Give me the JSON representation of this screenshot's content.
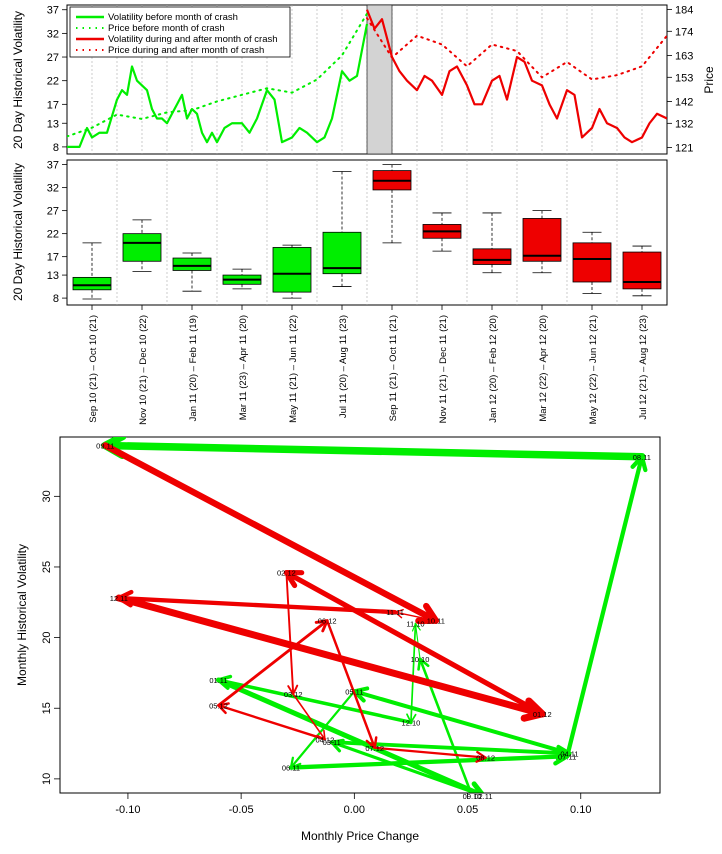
{
  "chart_data": [
    {
      "type": "line",
      "title": "",
      "ylabel": "20 Day Historical Volatility",
      "y2label": "Price",
      "ylim": [
        6.5,
        38
      ],
      "y2lim": [
        118,
        186
      ],
      "yticks": [
        "8",
        "13",
        "17",
        "22",
        "27",
        "32",
        "37"
      ],
      "y2ticks": [
        "121",
        "132",
        "142",
        "153",
        "163",
        "174",
        "184"
      ],
      "y2tick_values": [
        121,
        132,
        142,
        153,
        163,
        174,
        184
      ],
      "ytick_values": [
        8,
        13,
        17,
        22,
        27,
        32,
        37
      ],
      "month_count": 24,
      "crash_window": [
        12,
        13
      ],
      "legend": [
        "Volatility before month of crash",
        "Price before month of crash",
        "Volatility during and after month of crash",
        "Price during and after month of crash"
      ],
      "colors": {
        "before": "#00ee00",
        "after": "#ee0000",
        "crash_band": "#d3d3d3"
      },
      "series": [
        {
          "name": "Volatility before month of crash",
          "x": [
            0,
            0.5,
            0.8,
            1,
            1.3,
            1.6,
            2,
            2.2,
            2.4,
            2.6,
            2.8,
            3,
            3.2,
            3.4,
            3.6,
            3.8,
            4,
            4.2,
            4.4,
            4.6,
            4.8,
            5,
            5.2,
            5.4,
            5.6,
            5.8,
            6,
            6.3,
            6.6,
            7,
            7.3,
            7.6,
            8,
            8.3,
            8.6,
            9,
            9.3,
            9.6,
            10,
            10.3,
            10.6,
            11,
            11.3,
            11.6,
            12
          ],
          "values": [
            8,
            8,
            12,
            10,
            11,
            11,
            18,
            20,
            19,
            25,
            22,
            21,
            20,
            16,
            14,
            14,
            13,
            15,
            17,
            19,
            14,
            16,
            15,
            11,
            9,
            11,
            9,
            12,
            13,
            13,
            11,
            14,
            20,
            18,
            9,
            10,
            12,
            11,
            9,
            10,
            14,
            24,
            22,
            23,
            34
          ]
        },
        {
          "name": "Price before month of crash",
          "x": [
            0,
            1,
            2,
            3,
            4,
            5,
            6,
            7,
            8,
            9,
            10,
            11,
            12
          ],
          "values": [
            126,
            130,
            136,
            134,
            137,
            138,
            142,
            145,
            148,
            146,
            152,
            163,
            182
          ]
        },
        {
          "name": "Volatility during and after month of crash",
          "x": [
            12,
            12.3,
            12.6,
            13,
            13.3,
            13.6,
            14,
            14.3,
            14.6,
            15,
            15.3,
            15.6,
            16,
            16.3,
            16.6,
            17,
            17.3,
            17.6,
            18,
            18.3,
            18.6,
            19,
            19.3,
            19.6,
            20,
            20.3,
            20.6,
            21,
            21.3,
            21.6,
            22,
            22.3,
            22.6,
            23,
            23.3,
            23.6,
            24
          ],
          "values": [
            37,
            33,
            35,
            27,
            24,
            22,
            20,
            23,
            22,
            19,
            24,
            25,
            21,
            17,
            17,
            22,
            23,
            18,
            27,
            26,
            22,
            21,
            17,
            14,
            20,
            19,
            10,
            12,
            16,
            13,
            12,
            10,
            9,
            10,
            13,
            15,
            14
          ]
        },
        {
          "name": "Price during and after month of crash",
          "x": [
            12,
            13,
            14,
            15,
            16,
            17,
            18,
            19,
            20,
            21,
            22,
            23,
            24
          ],
          "values": [
            180,
            162,
            172,
            168,
            158,
            168,
            165,
            153,
            160,
            152,
            154,
            158,
            172
          ]
        }
      ],
      "x_categories": [
        "Sep 10 (21) – Oct 10 (21)",
        "Nov 10 (21) – Dec 10 (22)",
        "Jan 11 (20) – Feb 11 (19)",
        "Mar 11 (23) – Apr 11 (20)",
        "May 11 (21) – Jun 11 (22)",
        "Jul 11 (20) – Aug 11 (23)",
        "Sep 11 (21) – Oct 11 (21)",
        "Nov 11 (21) – Dec 11 (21)",
        "Jan 12 (20) – Feb 12 (20)",
        "Mar 12 (22) – Apr 12 (20)",
        "May 12 (22) – Jun 12 (21)",
        "Jul 12 (21) – Aug 12 (23)"
      ]
    },
    {
      "type": "box",
      "ylabel": "20 Day Historical Volatility",
      "ylim": [
        6.5,
        38
      ],
      "yticks": [
        "8",
        "13",
        "17",
        "22",
        "27",
        "32",
        "37"
      ],
      "ytick_values": [
        8,
        13,
        17,
        22,
        27,
        32,
        37
      ],
      "categories": [
        "Sep 10 (21) – Oct 10 (21)",
        "Nov 10 (21) – Dec 10 (22)",
        "Jan 11 (20) – Feb 11 (19)",
        "Mar 11 (23) – Apr 11 (20)",
        "May 11 (21) – Jun 11 (22)",
        "Jul 11 (20) – Aug 11 (23)",
        "Sep 11 (21) – Oct 11 (21)",
        "Nov 11 (21) – Dec 11 (21)",
        "Jan 12 (20) – Feb 12 (20)",
        "Mar 12 (22) – Apr 12 (20)",
        "May 12 (22) – Jun 12 (21)",
        "Jul 12 (21) – Aug 12 (23)"
      ],
      "boxes": [
        {
          "min": 7.8,
          "q1": 9.8,
          "median": 10.8,
          "q3": 12.5,
          "max": 20,
          "color": "#00ee00"
        },
        {
          "min": 13.8,
          "q1": 16,
          "median": 20,
          "q3": 22,
          "max": 25,
          "color": "#00ee00"
        },
        {
          "min": 9.5,
          "q1": 14,
          "median": 15,
          "q3": 16.7,
          "max": 17.8,
          "color": "#00ee00"
        },
        {
          "min": 10,
          "q1": 11,
          "median": 12,
          "q3": 13,
          "max": 14.3,
          "color": "#00ee00"
        },
        {
          "min": 8,
          "q1": 9.3,
          "median": 13.3,
          "q3": 19,
          "max": 19.5,
          "color": "#00ee00"
        },
        {
          "min": 10.5,
          "q1": 13.3,
          "median": 14.5,
          "q3": 22.3,
          "max": 35.5,
          "color": "#00ee00"
        },
        {
          "min": 20,
          "q1": 31.5,
          "median": 33.5,
          "q3": 35.7,
          "max": 37,
          "color": "#ee0000"
        },
        {
          "min": 18.2,
          "q1": 21,
          "median": 22.5,
          "q3": 24,
          "max": 26.5,
          "color": "#ee0000"
        },
        {
          "min": 13.5,
          "q1": 15.3,
          "median": 16.3,
          "q3": 18.7,
          "max": 26.5,
          "color": "#ee0000"
        },
        {
          "min": 13.5,
          "q1": 16,
          "median": 17.2,
          "q3": 25.3,
          "max": 27,
          "color": "#ee0000"
        },
        {
          "min": 9,
          "q1": 11.5,
          "median": 16.5,
          "q3": 20,
          "max": 22.3,
          "color": "#ee0000"
        },
        {
          "min": 8.5,
          "q1": 10,
          "median": 11.5,
          "q3": 18,
          "max": 19.3,
          "color": "#ee0000"
        }
      ]
    },
    {
      "type": "scatter",
      "xlabel": "Monthly Price Change",
      "ylabel": "Monthly Historical Volatility",
      "xlim": [
        -0.13,
        0.135
      ],
      "ylim": [
        9,
        34.2
      ],
      "xticks": [
        "-0.10",
        "-0.05",
        "0.00",
        "0.05",
        "0.10"
      ],
      "xtick_values": [
        -0.1,
        -0.05,
        0.0,
        0.05,
        0.1
      ],
      "yticks": [
        "10",
        "15",
        "20",
        "25",
        "30"
      ],
      "ytick_values": [
        10,
        15,
        20,
        25,
        30
      ],
      "points": [
        {
          "label": "09.10",
          "x": 0.052,
          "y": 8.8
        },
        {
          "label": "10.10",
          "x": 0.029,
          "y": 18.5
        },
        {
          "label": "11.10",
          "x": 0.027,
          "y": 21.0
        },
        {
          "label": "12.10",
          "x": 0.025,
          "y": 14.0
        },
        {
          "label": "01.11",
          "x": -0.06,
          "y": 17.0
        },
        {
          "label": "02.11",
          "x": 0.057,
          "y": 8.8
        },
        {
          "label": "03.11",
          "x": -0.01,
          "y": 12.6
        },
        {
          "label": "04.11",
          "x": 0.095,
          "y": 11.8
        },
        {
          "label": "05.11",
          "x": 0.0,
          "y": 16.2
        },
        {
          "label": "06.11",
          "x": -0.028,
          "y": 10.8
        },
        {
          "label": "07.11",
          "x": 0.094,
          "y": 11.6
        },
        {
          "label": "08.11",
          "x": 0.127,
          "y": 32.8
        },
        {
          "label": "09.11",
          "x": -0.11,
          "y": 33.6
        },
        {
          "label": "10.11",
          "x": 0.036,
          "y": 21.2
        },
        {
          "label": "11.11",
          "x": 0.018,
          "y": 21.8
        },
        {
          "label": "12.11",
          "x": -0.104,
          "y": 22.8
        },
        {
          "label": "01.12",
          "x": 0.083,
          "y": 14.6
        },
        {
          "label": "02.12",
          "x": -0.03,
          "y": 24.6
        },
        {
          "label": "03.12",
          "x": -0.027,
          "y": 16.0
        },
        {
          "label": "04.12",
          "x": -0.013,
          "y": 12.8
        },
        {
          "label": "05.12",
          "x": -0.06,
          "y": 15.2
        },
        {
          "label": "06.12",
          "x": -0.012,
          "y": 21.2
        },
        {
          "label": "07.12",
          "x": 0.009,
          "y": 12.2
        },
        {
          "label": "08.12",
          "x": 0.058,
          "y": 11.5
        }
      ],
      "path_before_order": [
        "09.10",
        "10.10",
        "11.10",
        "12.10",
        "01.11",
        "02.11",
        "03.11",
        "04.11",
        "05.11",
        "06.11",
        "07.11",
        "08.11",
        "09.11"
      ],
      "path_after_order": [
        "09.11",
        "10.11",
        "11.11",
        "12.11",
        "01.12",
        "02.12",
        "03.12",
        "04.12",
        "05.12",
        "06.12",
        "07.12",
        "08.12"
      ]
    }
  ]
}
